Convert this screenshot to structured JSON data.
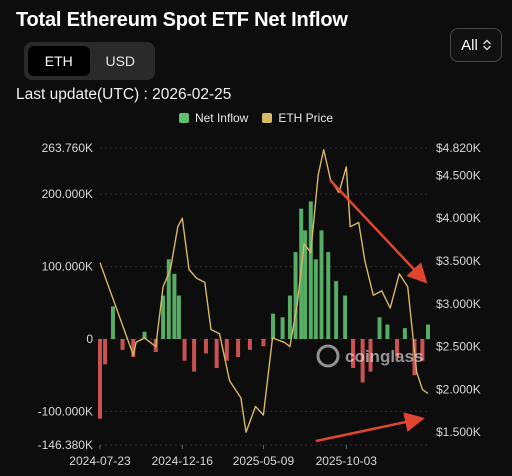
{
  "header": {
    "title": "Total Ethereum Spot ETF Net Inflow",
    "last_update": "Last update(UTC) : 2026-02-25"
  },
  "toggle": {
    "options": [
      "ETH",
      "USD"
    ],
    "selected": "ETH"
  },
  "range": {
    "selected": "All"
  },
  "legend": [
    {
      "label": "Net Inflow",
      "color": "#5fbf6f"
    },
    {
      "label": "ETH Price",
      "color": "#d7b866"
    }
  ],
  "watermark": "coinglass",
  "colors": {
    "inflow": "#5fbf6f",
    "outflow": "#e05a5a",
    "price": "#d7b866",
    "arrow": "#e0462e"
  },
  "chart_data": {
    "type": "bar",
    "x_ticks": [
      "2024-07-23",
      "2024-12-16",
      "2025-05-09",
      "2025-10-03"
    ],
    "x_range": [
      "2024-07-23",
      "2026-02-25"
    ],
    "y_left": {
      "ticks": [
        "263.760K",
        "200.000K",
        "100.000K",
        "0",
        "-100.000K",
        "-146.380K"
      ],
      "range": [
        -146380,
        263760
      ]
    },
    "y_right": {
      "ticks": [
        "$4.820K",
        "$4.500K",
        "$4.000K",
        "$3.500K",
        "$3.000K",
        "$2.500K",
        "$2.000K",
        "$1.500K"
      ],
      "range": [
        1350,
        4820
      ]
    },
    "series": [
      {
        "name": "Net Inflow",
        "kind": "bar",
        "unit": "ETH",
        "x": [
          "2024-07-23",
          "2024-08-01",
          "2024-08-15",
          "2024-09-01",
          "2024-09-20",
          "2024-10-10",
          "2024-10-30",
          "2024-11-12",
          "2024-11-22",
          "2024-12-02",
          "2024-12-10",
          "2024-12-20",
          "2025-01-06",
          "2025-01-27",
          "2025-02-15",
          "2025-03-05",
          "2025-03-25",
          "2025-04-15",
          "2025-05-09",
          "2025-05-26",
          "2025-06-12",
          "2025-06-25",
          "2025-07-05",
          "2025-07-15",
          "2025-07-22",
          "2025-08-01",
          "2025-08-10",
          "2025-08-20",
          "2025-09-01",
          "2025-09-15",
          "2025-10-01",
          "2025-10-15",
          "2025-11-01",
          "2025-11-15",
          "2025-12-01",
          "2025-12-15",
          "2026-01-01",
          "2026-01-15",
          "2026-02-01",
          "2026-02-15",
          "2026-02-25"
        ],
        "values": [
          -110000,
          -35000,
          45000,
          -15000,
          -25000,
          10000,
          -18000,
          60000,
          110000,
          90000,
          60000,
          -30000,
          -45000,
          -20000,
          -40000,
          -30000,
          -25000,
          -15000,
          -10000,
          35000,
          30000,
          60000,
          120000,
          180000,
          150000,
          190000,
          110000,
          150000,
          120000,
          80000,
          60000,
          -40000,
          -60000,
          -45000,
          30000,
          20000,
          -25000,
          15000,
          -50000,
          -30000,
          20000
        ]
      },
      {
        "name": "ETH Price",
        "kind": "line",
        "unit": "USD",
        "x": [
          "2024-07-23",
          "2024-09-20",
          "2024-09-25",
          "2024-10-10",
          "2024-10-30",
          "2024-11-12",
          "2024-11-25",
          "2024-12-08",
          "2024-12-16",
          "2024-12-28",
          "2025-01-10",
          "2025-01-25",
          "2025-02-05",
          "2025-02-20",
          "2025-03-10",
          "2025-03-30",
          "2025-04-08",
          "2025-04-25",
          "2025-05-09",
          "2025-05-25",
          "2025-06-15",
          "2025-06-25",
          "2025-07-08",
          "2025-07-20",
          "2025-08-01",
          "2025-08-14",
          "2025-08-24",
          "2025-09-05",
          "2025-09-20",
          "2025-10-03",
          "2025-10-10",
          "2025-10-25",
          "2025-11-05",
          "2025-11-20",
          "2025-12-05",
          "2025-12-20",
          "2026-01-05",
          "2026-01-20",
          "2026-02-05",
          "2026-02-15",
          "2026-02-25"
        ],
        "values": [
          3480,
          2400,
          2550,
          2600,
          2500,
          3200,
          3400,
          3900,
          4000,
          3400,
          3300,
          3250,
          2700,
          2650,
          2100,
          1900,
          1500,
          1800,
          1700,
          2600,
          2550,
          2500,
          3000,
          3700,
          3600,
          4500,
          4800,
          4450,
          4300,
          4600,
          3900,
          3950,
          3500,
          3100,
          3150,
          2950,
          3350,
          3200,
          2200,
          2000,
          1950
        ]
      }
    ],
    "annotations": [
      "red arrow: price downtrend from Aug 2025 peak",
      "red arrow: rising towards current price level"
    ]
  }
}
